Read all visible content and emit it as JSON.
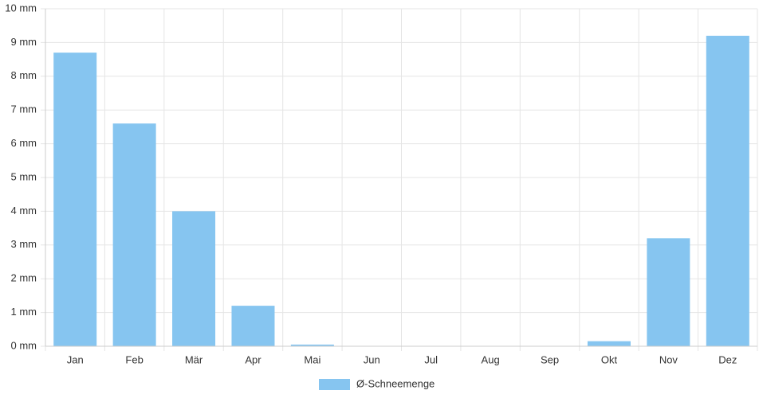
{
  "chart_data": {
    "type": "bar",
    "categories": [
      "Jan",
      "Feb",
      "Mär",
      "Apr",
      "Mai",
      "Jun",
      "Jul",
      "Aug",
      "Sep",
      "Okt",
      "Nov",
      "Dez"
    ],
    "series": [
      {
        "name": "Ø-Schneemenge",
        "color": "#86c5f0",
        "values": [
          8.7,
          6.6,
          4.0,
          1.2,
          0.05,
          0,
          0,
          0,
          0,
          0.15,
          3.2,
          9.2
        ]
      }
    ],
    "ylim": [
      0,
      10
    ],
    "yticks": [
      {
        "value": 0,
        "label": "0 mm"
      },
      {
        "value": 1,
        "label": "1 mm"
      },
      {
        "value": 2,
        "label": "2 mm"
      },
      {
        "value": 3,
        "label": "3 mm"
      },
      {
        "value": 4,
        "label": "4 mm"
      },
      {
        "value": 5,
        "label": "5 mm"
      },
      {
        "value": 6,
        "label": "6 mm"
      },
      {
        "value": 7,
        "label": "7 mm"
      },
      {
        "value": 8,
        "label": "8 mm"
      },
      {
        "value": 9,
        "label": "9 mm"
      },
      {
        "value": 10,
        "label": "10 mm"
      }
    ],
    "grid": true,
    "legend": "bottom"
  }
}
